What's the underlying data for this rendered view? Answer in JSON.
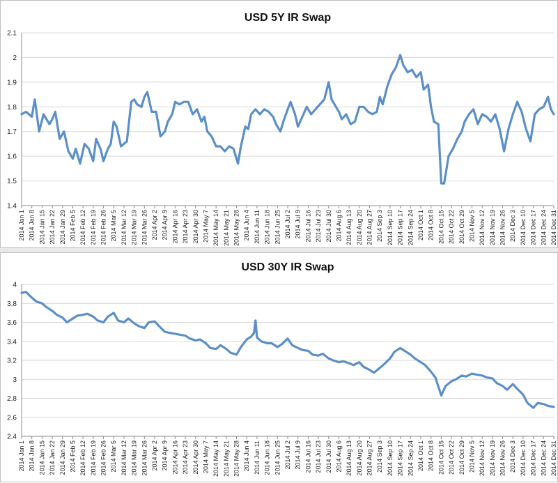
{
  "chart_data": [
    {
      "type": "line",
      "title": "USD 5Y IR Swap",
      "ylim": [
        1.4,
        2.1
      ],
      "yticks": [
        "1.4",
        "1.5",
        "1.6",
        "1.7",
        "1.8",
        "1.9",
        "2",
        "2.1"
      ],
      "grid": true,
      "line_color": "#5b8fc7",
      "x_tick_labels": [
        "2014 Jan 1",
        "2014 Jan 8",
        "2014 Jan 15",
        "2014 Jan 22",
        "2014 Jan 29",
        "2014 Feb 5",
        "2014 Feb 12",
        "2014 Feb 19",
        "2014 Feb 26",
        "2014 Mar 5",
        "2014 Mar 12",
        "2014 Mar 19",
        "2014 Mar 26",
        "2014 Apr 2",
        "2014 Apr 9",
        "2014 Apr 16",
        "2014 Apr 23",
        "2014 Apr 30",
        "2014 May 7",
        "2014 May 14",
        "2014 May 21",
        "2014 May 28",
        "2014 Jun 4",
        "2014 Jun 11",
        "2014 Jun 18",
        "2014 Jun 25",
        "2014 Jul 2",
        "2014 Jul 9",
        "2014 Jul 16",
        "2014 Jul 23",
        "2014 Jul 30",
        "2014 Aug 6",
        "2014 Aug 13",
        "2014 Aug 20",
        "2014 Aug 27",
        "2014 Sep 3",
        "2014 Sep 10",
        "2014 Sep 17",
        "2014 Sep 24",
        "2014 Oct 1",
        "2014 Oct 8",
        "2014 Oct 15",
        "2014 Oct 22",
        "2014 Oct 29",
        "2014 Nov 5",
        "2014 Nov 12",
        "2014 Nov 19",
        "2014 Nov 26",
        "2014 Dec 3",
        "2014 Dec 10",
        "2014 Dec 17",
        "2014 Dec 24",
        "2014 Dec 31"
      ],
      "series": [
        {
          "x": [
            "2014-01-01",
            "2014-01-04",
            "2014-01-08",
            "2014-01-10",
            "2014-01-13",
            "2014-01-16",
            "2014-01-20",
            "2014-01-22",
            "2014-01-24",
            "2014-01-27",
            "2014-01-30",
            "2014-02-02",
            "2014-02-05",
            "2014-02-07",
            "2014-02-10",
            "2014-02-13",
            "2014-02-16",
            "2014-02-19",
            "2014-02-21",
            "2014-02-24",
            "2014-02-26",
            "2014-03-01",
            "2014-03-03",
            "2014-03-05",
            "2014-03-07",
            "2014-03-10",
            "2014-03-12",
            "2014-03-14",
            "2014-03-17",
            "2014-03-19",
            "2014-03-21",
            "2014-03-24",
            "2014-03-26",
            "2014-03-28",
            "2014-03-31",
            "2014-04-03",
            "2014-04-06",
            "2014-04-09",
            "2014-04-11",
            "2014-04-14",
            "2014-04-16",
            "2014-04-19",
            "2014-04-22",
            "2014-04-25",
            "2014-04-28",
            "2014-05-01",
            "2014-05-04",
            "2014-05-06",
            "2014-05-08",
            "2014-05-11",
            "2014-05-14",
            "2014-05-17",
            "2014-05-20",
            "2014-05-23",
            "2014-05-26",
            "2014-05-29",
            "2014-05-31",
            "2014-06-03",
            "2014-06-05",
            "2014-06-07",
            "2014-06-10",
            "2014-06-13",
            "2014-06-16",
            "2014-06-19",
            "2014-06-22",
            "2014-06-24",
            "2014-06-27",
            "2014-06-29",
            "2014-07-02",
            "2014-07-04",
            "2014-07-07",
            "2014-07-09",
            "2014-07-12",
            "2014-07-15",
            "2014-07-18",
            "2014-07-21",
            "2014-07-24",
            "2014-07-27",
            "2014-07-30",
            "2014-08-01",
            "2014-08-04",
            "2014-08-06",
            "2014-08-08",
            "2014-08-11",
            "2014-08-14",
            "2014-08-17",
            "2014-08-20",
            "2014-08-23",
            "2014-08-26",
            "2014-08-29",
            "2014-09-01",
            "2014-09-03",
            "2014-09-05",
            "2014-09-08",
            "2014-09-11",
            "2014-09-14",
            "2014-09-17",
            "2014-09-19",
            "2014-09-22",
            "2014-09-25",
            "2014-09-28",
            "2014-10-01",
            "2014-10-03",
            "2014-10-06",
            "2014-10-08",
            "2014-10-10",
            "2014-10-13",
            "2014-10-15",
            "2014-10-17",
            "2014-10-20",
            "2014-10-23",
            "2014-10-26",
            "2014-10-29",
            "2014-10-31",
            "2014-11-03",
            "2014-11-06",
            "2014-11-09",
            "2014-11-12",
            "2014-11-15",
            "2014-11-18",
            "2014-11-21",
            "2014-11-24",
            "2014-11-27",
            "2014-11-30",
            "2014-12-03",
            "2014-12-06",
            "2014-12-09",
            "2014-12-12",
            "2014-12-15",
            "2014-12-18",
            "2014-12-21",
            "2014-12-24",
            "2014-12-27",
            "2014-12-29",
            "2014-12-31"
          ],
          "y": [
            1.77,
            1.78,
            1.76,
            1.83,
            1.7,
            1.77,
            1.73,
            1.75,
            1.78,
            1.67,
            1.7,
            1.62,
            1.59,
            1.63,
            1.57,
            1.65,
            1.63,
            1.58,
            1.67,
            1.63,
            1.58,
            1.63,
            1.65,
            1.74,
            1.72,
            1.64,
            1.65,
            1.66,
            1.82,
            1.83,
            1.81,
            1.8,
            1.84,
            1.86,
            1.78,
            1.78,
            1.68,
            1.7,
            1.74,
            1.77,
            1.82,
            1.81,
            1.82,
            1.82,
            1.77,
            1.79,
            1.74,
            1.76,
            1.7,
            1.68,
            1.64,
            1.64,
            1.62,
            1.64,
            1.63,
            1.57,
            1.64,
            1.72,
            1.71,
            1.77,
            1.79,
            1.77,
            1.79,
            1.78,
            1.76,
            1.73,
            1.7,
            1.74,
            1.79,
            1.82,
            1.77,
            1.72,
            1.76,
            1.8,
            1.77,
            1.79,
            1.81,
            1.83,
            1.9,
            1.83,
            1.8,
            1.78,
            1.75,
            1.77,
            1.73,
            1.74,
            1.8,
            1.8,
            1.78,
            1.77,
            1.78,
            1.84,
            1.81,
            1.88,
            1.93,
            1.96,
            2.01,
            1.97,
            1.94,
            1.95,
            1.92,
            1.94,
            1.87,
            1.89,
            1.8,
            1.74,
            1.73,
            1.49,
            1.49,
            1.6,
            1.63,
            1.67,
            1.7,
            1.74,
            1.77,
            1.79,
            1.73,
            1.77,
            1.76,
            1.74,
            1.77,
            1.71,
            1.62,
            1.71,
            1.77,
            1.82,
            1.78,
            1.71,
            1.66,
            1.77,
            1.79,
            1.8,
            1.84,
            1.79,
            1.77
          ]
        }
      ]
    },
    {
      "type": "line",
      "title": "USD 30Y IR Swap",
      "ylim": [
        2.4,
        4.0
      ],
      "yticks": [
        "2.4",
        "2.6",
        "2.8",
        "3",
        "3.2",
        "3.4",
        "3.6",
        "3.8",
        "4"
      ],
      "grid": true,
      "line_color": "#5b8fc7",
      "x_tick_labels": [
        "2014 Jan 1",
        "2014 Jan 8",
        "2014 Jan 15",
        "2014 Jan 22",
        "2014 Jan 29",
        "2014 Feb 5",
        "2014 Feb 12",
        "2014 Feb 19",
        "2014 Feb 26",
        "2014 Mar 5",
        "2014 Mar 12",
        "2014 Mar 19",
        "2014 Mar 26",
        "2014 Apr 2",
        "2014 Apr 9",
        "2014 Apr 16",
        "2014 Apr 23",
        "2014 Apr 30",
        "2014 May 7",
        "2014 May 14",
        "2014 May 21",
        "2014 May 28",
        "2014 Jun 4",
        "2014 Jun 11",
        "2014 Jun 18",
        "2014 Jun 25",
        "2014 Jul 2",
        "2014 Jul 9",
        "2014 Jul 16",
        "2014 Jul 23",
        "2014 Jul 30",
        "2014 Aug 6",
        "2014 Aug 13",
        "2014 Aug 20",
        "2014 Aug 27",
        "2014 Sep 3",
        "2014 Sep 10",
        "2014 Sep 17",
        "2014 Sep 24",
        "2014 Oct 1",
        "2014 Oct 8",
        "2014 Oct 15",
        "2014 Oct 22",
        "2014 Oct 29",
        "2014 Nov 5",
        "2014 Nov 12",
        "2014 Nov 19",
        "2014 Nov 26",
        "2014 Dec 3",
        "2014 Dec 10",
        "2014 Dec 17",
        "2014 Dec 24",
        "2014 Dec 31"
      ],
      "series": [
        {
          "x": [
            "2014-01-01",
            "2014-01-04",
            "2014-01-08",
            "2014-01-11",
            "2014-01-15",
            "2014-01-18",
            "2014-01-22",
            "2014-01-25",
            "2014-01-29",
            "2014-02-01",
            "2014-02-05",
            "2014-02-08",
            "2014-02-12",
            "2014-02-15",
            "2014-02-19",
            "2014-02-22",
            "2014-02-26",
            "2014-03-01",
            "2014-03-05",
            "2014-03-08",
            "2014-03-12",
            "2014-03-15",
            "2014-03-19",
            "2014-03-22",
            "2014-03-26",
            "2014-03-29",
            "2014-04-02",
            "2014-04-05",
            "2014-04-09",
            "2014-04-12",
            "2014-04-16",
            "2014-04-19",
            "2014-04-23",
            "2014-04-26",
            "2014-04-30",
            "2014-05-03",
            "2014-05-07",
            "2014-05-10",
            "2014-05-14",
            "2014-05-17",
            "2014-05-21",
            "2014-05-24",
            "2014-05-28",
            "2014-05-31",
            "2014-06-04",
            "2014-06-07",
            "2014-06-09",
            "2014-06-10",
            "2014-06-11",
            "2014-06-14",
            "2014-06-18",
            "2014-06-21",
            "2014-06-25",
            "2014-06-28",
            "2014-07-02",
            "2014-07-05",
            "2014-07-09",
            "2014-07-12",
            "2014-07-16",
            "2014-07-19",
            "2014-07-23",
            "2014-07-26",
            "2014-07-30",
            "2014-08-02",
            "2014-08-06",
            "2014-08-09",
            "2014-08-13",
            "2014-08-16",
            "2014-08-20",
            "2014-08-23",
            "2014-08-27",
            "2014-08-30",
            "2014-09-03",
            "2014-09-06",
            "2014-09-10",
            "2014-09-13",
            "2014-09-17",
            "2014-09-20",
            "2014-09-24",
            "2014-09-27",
            "2014-10-01",
            "2014-10-04",
            "2014-10-08",
            "2014-10-11",
            "2014-10-15",
            "2014-10-18",
            "2014-10-22",
            "2014-10-25",
            "2014-10-29",
            "2014-11-01",
            "2014-11-05",
            "2014-11-08",
            "2014-11-12",
            "2014-11-15",
            "2014-11-19",
            "2014-11-22",
            "2014-11-26",
            "2014-11-29",
            "2014-12-03",
            "2014-12-06",
            "2014-12-10",
            "2014-12-13",
            "2014-12-17",
            "2014-12-20",
            "2014-12-24",
            "2014-12-27",
            "2014-12-31"
          ],
          "y": [
            3.91,
            3.92,
            3.86,
            3.82,
            3.8,
            3.76,
            3.72,
            3.68,
            3.65,
            3.6,
            3.64,
            3.67,
            3.68,
            3.69,
            3.66,
            3.62,
            3.6,
            3.66,
            3.7,
            3.62,
            3.6,
            3.64,
            3.59,
            3.56,
            3.54,
            3.6,
            3.61,
            3.56,
            3.5,
            3.49,
            3.48,
            3.47,
            3.46,
            3.43,
            3.41,
            3.42,
            3.38,
            3.33,
            3.32,
            3.36,
            3.32,
            3.28,
            3.26,
            3.34,
            3.42,
            3.45,
            3.49,
            3.62,
            3.44,
            3.4,
            3.38,
            3.38,
            3.34,
            3.37,
            3.43,
            3.36,
            3.33,
            3.31,
            3.3,
            3.26,
            3.25,
            3.27,
            3.22,
            3.2,
            3.18,
            3.19,
            3.17,
            3.15,
            3.18,
            3.13,
            3.1,
            3.07,
            3.12,
            3.16,
            3.22,
            3.29,
            3.33,
            3.3,
            3.26,
            3.22,
            3.18,
            3.15,
            3.08,
            3.02,
            2.83,
            2.93,
            2.98,
            3.0,
            3.04,
            3.03,
            3.06,
            3.05,
            3.04,
            3.02,
            3.01,
            2.96,
            2.93,
            2.89,
            2.95,
            2.9,
            2.84,
            2.75,
            2.7,
            2.75,
            2.74,
            2.72,
            2.71
          ]
        }
      ]
    }
  ]
}
